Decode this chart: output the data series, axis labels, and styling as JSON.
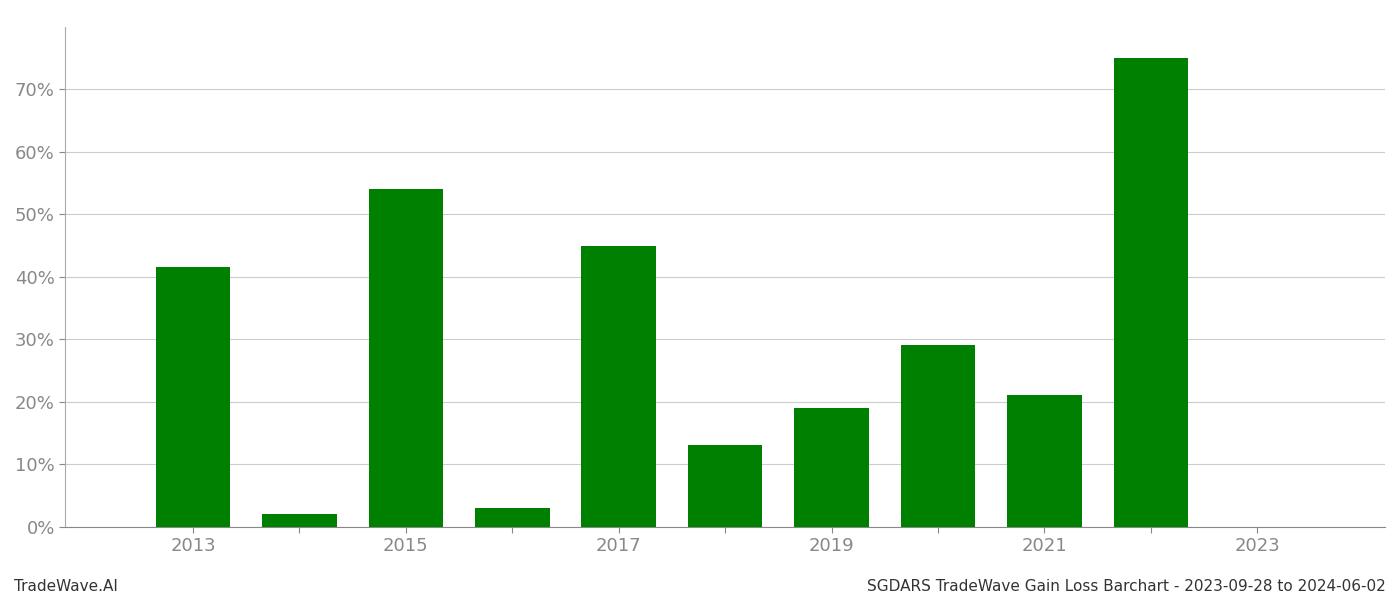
{
  "years": [
    2013,
    2014,
    2015,
    2016,
    2017,
    2018,
    2019,
    2020,
    2021,
    2022,
    2023
  ],
  "values": [
    0.415,
    0.02,
    0.54,
    0.03,
    0.45,
    0.13,
    0.19,
    0.29,
    0.21,
    0.75,
    0.0
  ],
  "bar_color": "#008000",
  "background_color": "#ffffff",
  "grid_color": "#cccccc",
  "ytick_color": "#888888",
  "xtick_color": "#888888",
  "ylim": [
    0,
    0.8
  ],
  "yticks": [
    0.0,
    0.1,
    0.2,
    0.3,
    0.4,
    0.5,
    0.6,
    0.7
  ],
  "xlim_left": 2011.8,
  "xlim_right": 2024.2,
  "footer_left": "TradeWave.AI",
  "footer_right": "SGDARS TradeWave Gain Loss Barchart - 2023-09-28 to 2024-06-02",
  "footer_fontsize": 11,
  "tick_fontsize": 13,
  "bar_width": 0.7
}
